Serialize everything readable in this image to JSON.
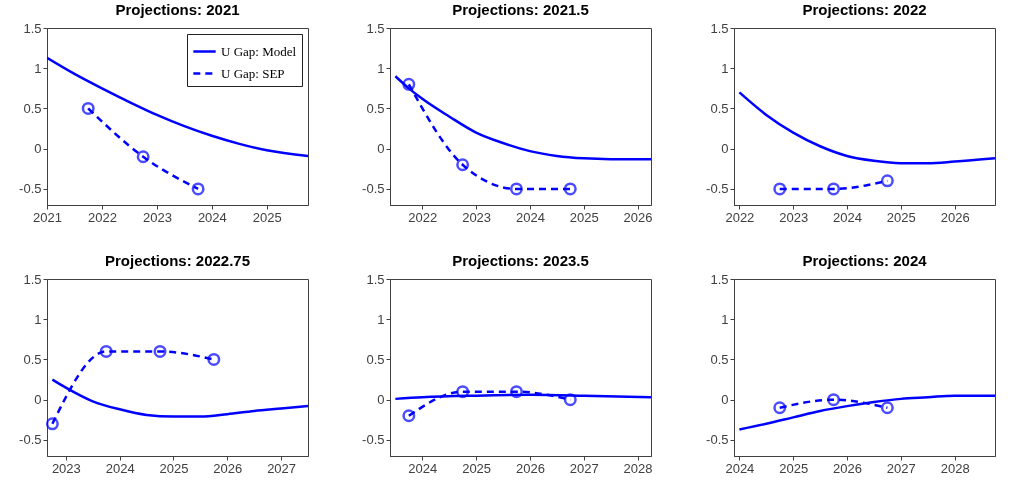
{
  "chart_data": [
    {
      "type": "line",
      "title": "Projections: 2021",
      "xlim": [
        2021,
        2025.75
      ],
      "xticks": [
        2021,
        2022,
        2023,
        2024,
        2025
      ],
      "ylim": [
        -0.7,
        1.5
      ],
      "yticks": [
        -0.5,
        0,
        0.5,
        1,
        1.5
      ],
      "grid": false,
      "legend": "top right",
      "series": [
        {
          "name": "U Gap: Model",
          "color": "#0000ff",
          "marker": "none",
          "line_style": "solid",
          "x": [
            2021,
            2021.5,
            2022,
            2022.5,
            2023,
            2023.5,
            2024,
            2024.5,
            2025,
            2025.75
          ],
          "values": [
            1.13,
            0.93,
            0.75,
            0.58,
            0.42,
            0.28,
            0.16,
            0.06,
            -0.02,
            -0.09
          ]
        },
        {
          "name": "U Gap: SEP",
          "color": "#0000ff",
          "marker": "circle",
          "line_style": "dashed",
          "x": [
            2021.75,
            2022.75,
            2023.75
          ],
          "values": [
            0.5,
            -0.1,
            -0.5
          ]
        }
      ]
    },
    {
      "type": "line",
      "title": "Projections: 2021.5",
      "xlim": [
        2021.4,
        2026.25
      ],
      "xticks": [
        2022,
        2023,
        2024,
        2025,
        2026
      ],
      "ylim": [
        -0.7,
        1.5
      ],
      "yticks": [
        -0.5,
        0,
        0.5,
        1,
        1.5
      ],
      "grid": false,
      "series": [
        {
          "color": "#0000ff",
          "marker": "none",
          "line_style": "solid",
          "x": [
            2021.5,
            2021.75,
            2022,
            2022.5,
            2023,
            2023.5,
            2024,
            2024.5,
            2025,
            2025.5,
            2026.25
          ],
          "values": [
            0.9,
            0.75,
            0.62,
            0.4,
            0.2,
            0.07,
            -0.03,
            -0.09,
            -0.12,
            -0.13,
            -0.13
          ]
        },
        {
          "color": "#0000ff",
          "marker": "circle",
          "line_style": "dashed",
          "x": [
            2021.75,
            2022.75,
            2023.75,
            2024.75
          ],
          "values": [
            0.8,
            -0.2,
            -0.5,
            -0.5
          ]
        }
      ]
    },
    {
      "type": "line",
      "title": "Projections: 2022",
      "xlim": [
        2021.9,
        2026.75
      ],
      "xticks": [
        2022,
        2023,
        2024,
        2025,
        2026
      ],
      "ylim": [
        -0.7,
        1.5
      ],
      "yticks": [
        -0.5,
        0,
        0.5,
        1,
        1.5
      ],
      "grid": false,
      "series": [
        {
          "color": "#0000ff",
          "marker": "none",
          "line_style": "solid",
          "x": [
            2022,
            2022.5,
            2023,
            2023.5,
            2024,
            2024.5,
            2025,
            2025.5,
            2026,
            2026.75
          ],
          "values": [
            0.7,
            0.42,
            0.2,
            0.03,
            -0.09,
            -0.15,
            -0.18,
            -0.18,
            -0.16,
            -0.12
          ]
        },
        {
          "color": "#0000ff",
          "marker": "circle",
          "line_style": "dashed",
          "x": [
            2022.75,
            2023.75,
            2024.75
          ],
          "values": [
            -0.5,
            -0.5,
            -0.4
          ]
        }
      ]
    },
    {
      "type": "line",
      "title": "Projections: 2022.75",
      "xlim": [
        2022.65,
        2027.5
      ],
      "xticks": [
        2023,
        2024,
        2025,
        2026,
        2027
      ],
      "ylim": [
        -0.7,
        1.5
      ],
      "yticks": [
        -0.5,
        0,
        0.5,
        1,
        1.5
      ],
      "grid": false,
      "series": [
        {
          "color": "#0000ff",
          "marker": "none",
          "line_style": "solid",
          "x": [
            2022.75,
            2023,
            2023.5,
            2024,
            2024.5,
            2025,
            2025.5,
            2026,
            2026.5,
            2027,
            2027.5
          ],
          "values": [
            0.25,
            0.15,
            -0.02,
            -0.12,
            -0.19,
            -0.21,
            -0.21,
            -0.18,
            -0.14,
            -0.11,
            -0.08
          ]
        },
        {
          "color": "#0000ff",
          "marker": "circle",
          "line_style": "dashed",
          "x": [
            2022.75,
            2023.75,
            2024.75,
            2025.75
          ],
          "values": [
            -0.3,
            0.6,
            0.6,
            0.5
          ]
        }
      ]
    },
    {
      "type": "line",
      "title": "Projections: 2023.5",
      "xlim": [
        2023.4,
        2028.25
      ],
      "xticks": [
        2024,
        2025,
        2026,
        2027,
        2028
      ],
      "ylim": [
        -0.7,
        1.5
      ],
      "yticks": [
        -0.5,
        0,
        0.5,
        1,
        1.5
      ],
      "grid": false,
      "series": [
        {
          "color": "#0000ff",
          "marker": "none",
          "line_style": "solid",
          "x": [
            2023.5,
            2024,
            2025,
            2026,
            2027,
            2028.25
          ],
          "values": [
            0.01,
            0.03,
            0.05,
            0.06,
            0.05,
            0.03
          ]
        },
        {
          "color": "#0000ff",
          "marker": "circle",
          "line_style": "dashed",
          "x": [
            2023.75,
            2024.75,
            2025.75,
            2026.75
          ],
          "values": [
            -0.2,
            0.1,
            0.1,
            0
          ]
        }
      ]
    },
    {
      "type": "line",
      "title": "Projections: 2024",
      "xlim": [
        2023.9,
        2028.75
      ],
      "xticks": [
        2024,
        2025,
        2026,
        2027,
        2028
      ],
      "ylim": [
        -0.7,
        1.5
      ],
      "yticks": [
        -0.5,
        0,
        0.5,
        1,
        1.5
      ],
      "grid": false,
      "series": [
        {
          "color": "#0000ff",
          "marker": "none",
          "line_style": "solid",
          "x": [
            2024,
            2024.5,
            2025,
            2025.5,
            2026,
            2026.5,
            2027,
            2027.5,
            2028,
            2028.75
          ],
          "values": [
            -0.37,
            -0.3,
            -0.22,
            -0.14,
            -0.08,
            -0.03,
            0.01,
            0.03,
            0.05,
            0.05
          ]
        },
        {
          "color": "#0000ff",
          "marker": "circle",
          "line_style": "dashed",
          "x": [
            2024.75,
            2025.75,
            2026.75
          ],
          "values": [
            -0.1,
            0,
            -0.1
          ]
        }
      ]
    }
  ]
}
